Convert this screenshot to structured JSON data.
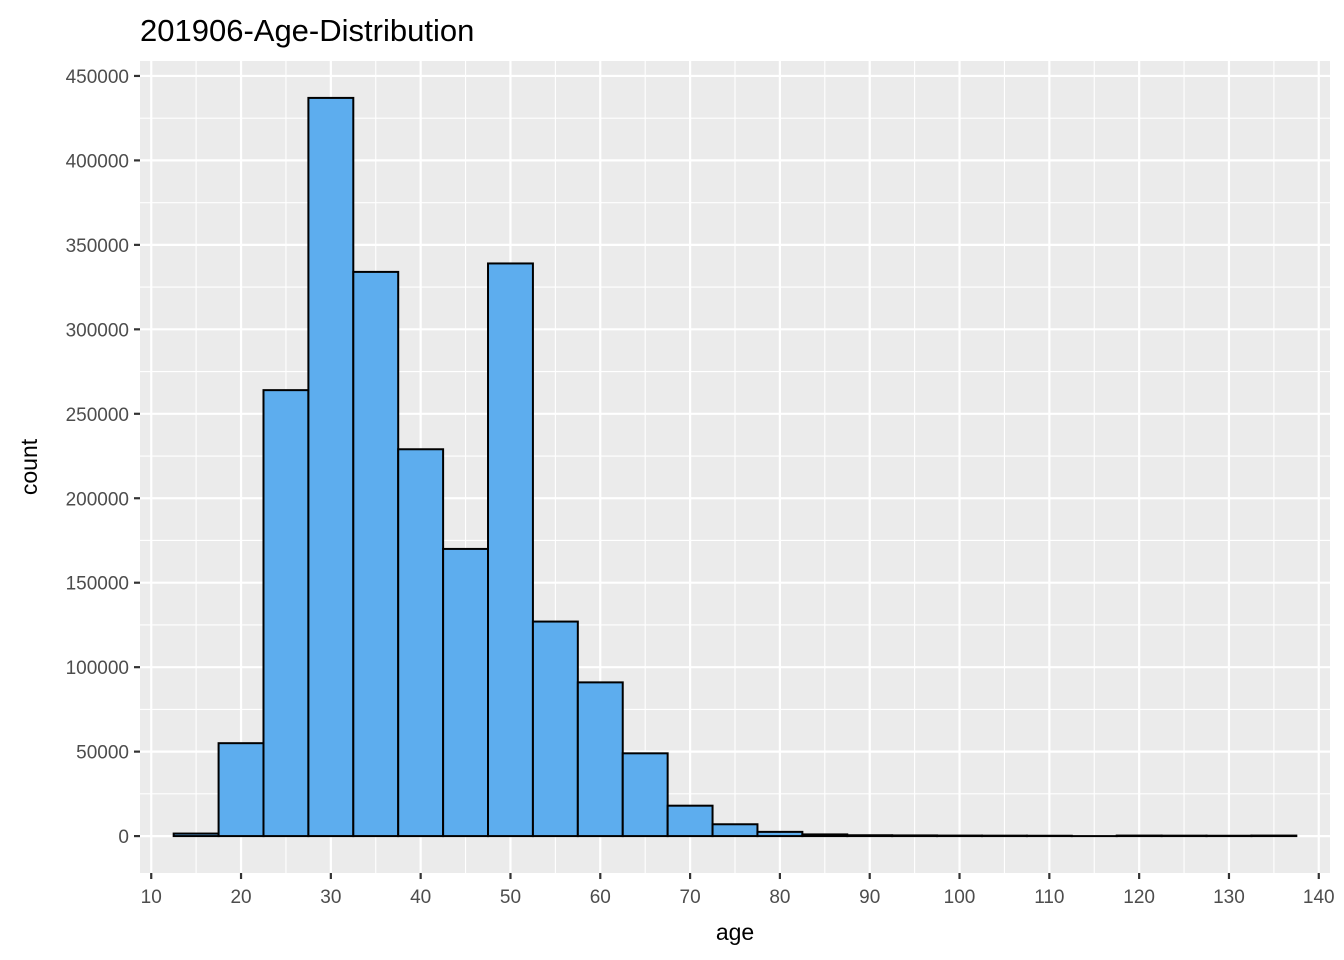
{
  "chart_data": {
    "type": "bar",
    "title": "201906-Age-Distribution",
    "xlabel": "age",
    "ylabel": "count",
    "bin_width": 5,
    "bins": [
      {
        "start": 12.5,
        "end": 17.5,
        "count": 1500
      },
      {
        "start": 17.5,
        "end": 22.5,
        "count": 55000
      },
      {
        "start": 22.5,
        "end": 27.5,
        "count": 264000
      },
      {
        "start": 27.5,
        "end": 32.5,
        "count": 437000
      },
      {
        "start": 32.5,
        "end": 37.5,
        "count": 334000
      },
      {
        "start": 37.5,
        "end": 42.5,
        "count": 229000
      },
      {
        "start": 42.5,
        "end": 47.5,
        "count": 170000
      },
      {
        "start": 47.5,
        "end": 52.5,
        "count": 339000
      },
      {
        "start": 52.5,
        "end": 57.5,
        "count": 127000
      },
      {
        "start": 57.5,
        "end": 62.5,
        "count": 91000
      },
      {
        "start": 62.5,
        "end": 67.5,
        "count": 49000
      },
      {
        "start": 67.5,
        "end": 72.5,
        "count": 18000
      },
      {
        "start": 72.5,
        "end": 77.5,
        "count": 7000
      },
      {
        "start": 77.5,
        "end": 82.5,
        "count": 2500
      },
      {
        "start": 82.5,
        "end": 87.5,
        "count": 1000
      },
      {
        "start": 87.5,
        "end": 92.5,
        "count": 500
      },
      {
        "start": 92.5,
        "end": 97.5,
        "count": 400
      },
      {
        "start": 97.5,
        "end": 102.5,
        "count": 300
      },
      {
        "start": 102.5,
        "end": 107.5,
        "count": 250
      },
      {
        "start": 107.5,
        "end": 112.5,
        "count": 200
      },
      {
        "start": 112.5,
        "end": 117.5,
        "count": 0
      },
      {
        "start": 117.5,
        "end": 122.5,
        "count": 300
      },
      {
        "start": 122.5,
        "end": 127.5,
        "count": 250
      },
      {
        "start": 127.5,
        "end": 132.5,
        "count": 200
      },
      {
        "start": 132.5,
        "end": 137.5,
        "count": 300
      }
    ],
    "xlim": [
      8.75,
      141.25
    ],
    "ylim": [
      -21850,
      458850
    ],
    "x_ticks": [
      10,
      20,
      30,
      40,
      50,
      60,
      70,
      80,
      90,
      100,
      110,
      120,
      130,
      140
    ],
    "y_ticks": [
      0,
      50000,
      100000,
      150000,
      200000,
      250000,
      300000,
      350000,
      400000,
      450000
    ],
    "x_tick_labels": [
      "10",
      "20",
      "30",
      "40",
      "50",
      "60",
      "70",
      "80",
      "90",
      "100",
      "110",
      "120",
      "130",
      "140"
    ],
    "y_tick_labels": [
      "0",
      "50000",
      "100000",
      "150000",
      "200000",
      "250000",
      "300000",
      "350000",
      "400000",
      "450000"
    ],
    "grid": true,
    "colors": {
      "bar_fill": "#5DADEE",
      "bar_stroke": "#000000",
      "panel_background": "#EBEBEB",
      "grid_line": "#FFFFFF",
      "tick_label": "#4D4D4D"
    }
  }
}
